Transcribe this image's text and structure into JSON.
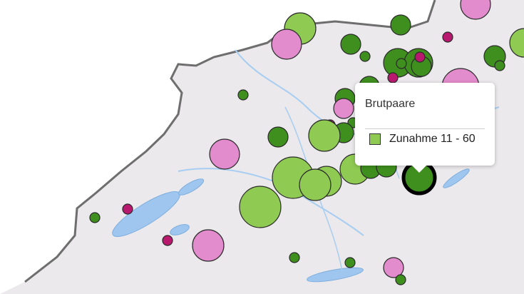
{
  "map": {
    "colors": {
      "land": "#eceaec",
      "border": "#6e6e6e",
      "water": "#9ec6ee",
      "increase_large": "#8fca52",
      "increase_small": "#3f8f1f",
      "decrease_large": "#e38ccd",
      "decrease_small": "#b8196f",
      "outline": "#2a2a2a"
    },
    "highlight_category": "Zunahme 11 - 60"
  },
  "tooltip": {
    "title": "Brutpaare",
    "category_label": "Zunahme 11 - 60",
    "swatch_color": "#8fca52"
  }
}
